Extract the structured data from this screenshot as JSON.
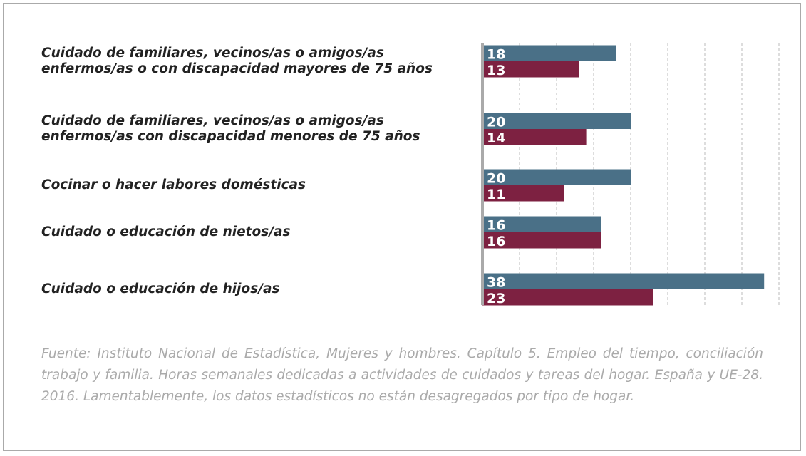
{
  "chart_data": {
    "type": "barh",
    "categories": [
      "Cuidado de familiares, vecinos/as o amigos/as\nenfermos/as o con discapacidad mayores de 75 años",
      "Cuidado de familiares, vecinos/as  o amigos/as\nenfermos/as con discapacidad menores de 75 años",
      "Cocinar o hacer labores domésticas",
      "Cuidado o educación de nietos/as",
      "Cuidado o educación de hijos/as"
    ],
    "series": [
      {
        "color": "#4a7087",
        "values": [
          18,
          20,
          20,
          16,
          38
        ]
      },
      {
        "color": "#7d2141",
        "values": [
          13,
          14,
          11,
          16,
          23
        ]
      }
    ],
    "xlim": [
      0,
      40
    ],
    "xticks": [
      5,
      10,
      15,
      20,
      25,
      30,
      35,
      40
    ],
    "grid": true,
    "source": "Fuente: Instituto Nacional de Estadística, Mujeres y hombres. Capítulo 5. Empleo del tiempo, conciliación trabajo y familia. Horas semanales dedicadas a actividades de cuidados y tareas del hogar. España y UE-28. 2016. Lamentablemente, los datos estadísticos no están desagregados por tipo de hogar."
  }
}
